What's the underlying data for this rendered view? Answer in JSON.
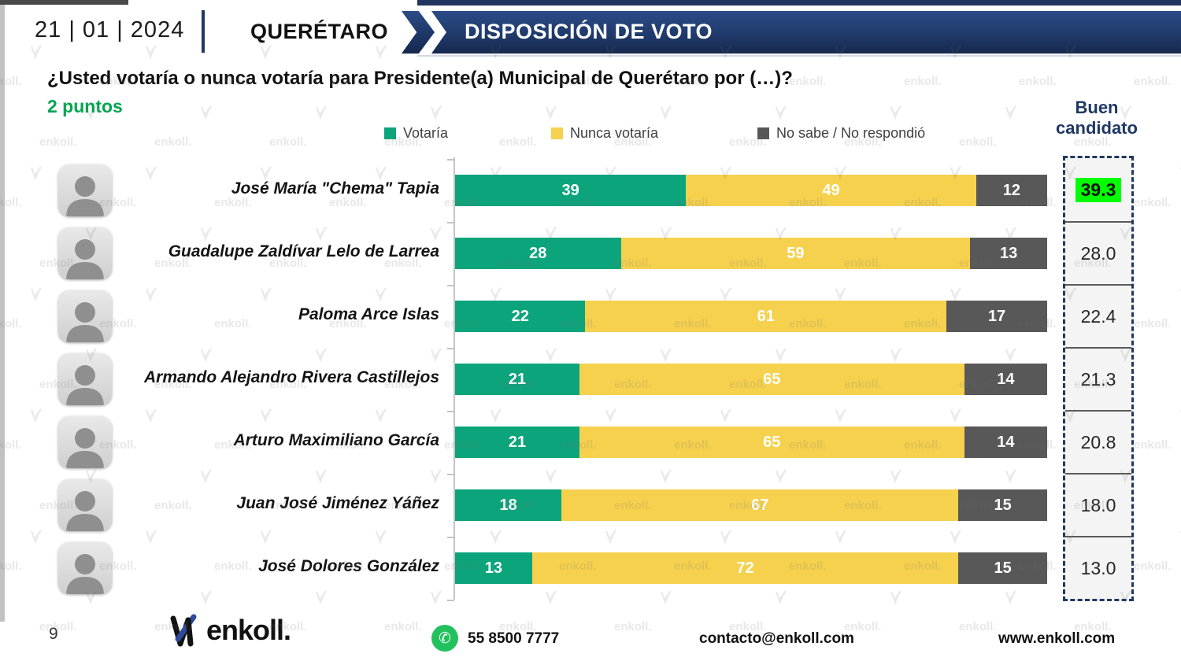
{
  "header": {
    "date": "21 | 01 | 2024",
    "region": "QUERÉTARO",
    "banner_title": "DISPOSICIÓN DE VOTO"
  },
  "question": "¿Usted votaría o nunca votaría para Presidente(a) Municipal de Querétaro por (…)?",
  "note": "2 puntos",
  "legend": [
    {
      "label": "Votaría",
      "color": "#0ca47b"
    },
    {
      "label": "Nunca votaría",
      "color": "#f6d14e"
    },
    {
      "label": "No sabe / No respondió",
      "color": "#585858"
    }
  ],
  "good_candidate_header": "Buen\ncandidato",
  "chart_data": {
    "type": "bar",
    "stacked": true,
    "orientation": "horizontal",
    "title": "¿Usted votaría o nunca votaría para Presidente(a) Municipal de Querétaro por (…)?",
    "xlim": [
      0,
      100
    ],
    "legend_position": "top",
    "grid": false,
    "categories": [
      "José María \"Chema\" Tapia",
      "Guadalupe Zaldívar Lelo de Larrea",
      "Paloma Arce Islas",
      "Armando Alejandro Rivera Castillejos",
      "Arturo Maximiliano García",
      "Juan José Jiménez Yáñez",
      "José Dolores González"
    ],
    "series": [
      {
        "name": "Votaría",
        "color": "#0ca47b",
        "values": [
          39,
          28,
          22,
          21,
          21,
          18,
          13
        ]
      },
      {
        "name": "Nunca votaría",
        "color": "#f6d14e",
        "values": [
          49,
          59,
          61,
          65,
          65,
          67,
          72
        ]
      },
      {
        "name": "No sabe / No respondió",
        "color": "#585858",
        "values": [
          12,
          13,
          17,
          14,
          14,
          15,
          15
        ]
      }
    ],
    "buen_candidato_values": [
      39.3,
      28.0,
      22.4,
      21.3,
      20.8,
      18.0,
      13.0
    ],
    "buen_candidato_labels": [
      "39.3",
      "28.0",
      "22.4",
      "21.3",
      "20.8",
      "18.0",
      "13.0"
    ],
    "highlight_index": 0,
    "highlight_color": "#00ff00"
  },
  "footer": {
    "page_number": "9",
    "logo_text": "enkoll.",
    "phone": "55 8500 7777",
    "email": "contacto@enkoll.com",
    "website": "www.enkoll.com"
  },
  "watermark_text": "enkoll."
}
